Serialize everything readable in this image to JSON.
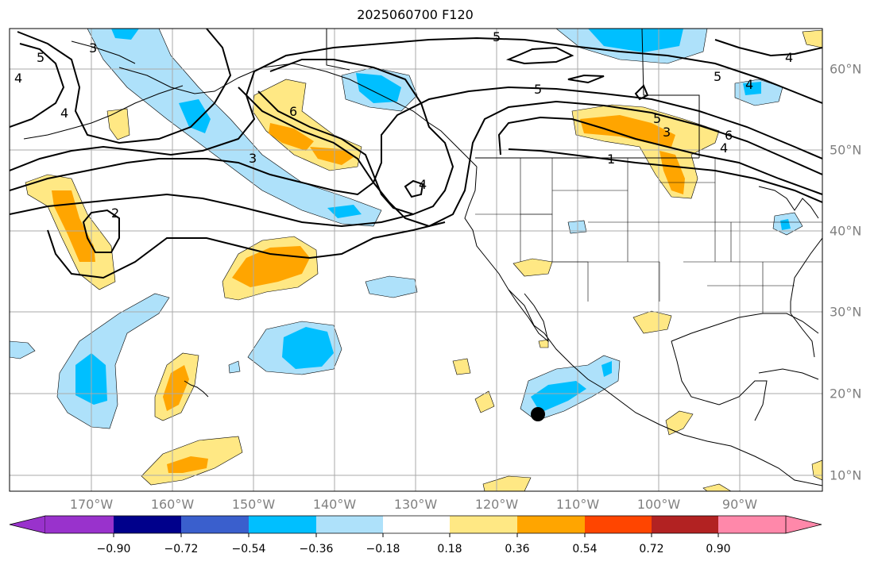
{
  "title": "2025060700 F120",
  "lon_labels": [
    "170°W",
    "160°W",
    "150°W",
    "140°W",
    "130°W",
    "120°W",
    "110°W",
    "100°W",
    "90°W"
  ],
  "lat_labels": [
    "60°N",
    "50°N",
    "40°N",
    "30°N",
    "20°N",
    "10°N"
  ],
  "colorbar": {
    "tick_labels": [
      "−0.90",
      "−0.72",
      "−0.54",
      "−0.36",
      "−0.18",
      "0.18",
      "0.36",
      "0.54",
      "0.72",
      "0.90"
    ],
    "colors": [
      "#9932cc",
      "#00008b",
      "#3a5fcd",
      "#00bfff",
      "#aee1fa",
      "#ffffff",
      "#ffe884",
      "#ffa500",
      "#ff4500",
      "#b22222",
      "#ff88aa"
    ]
  },
  "contour_labels": [
    "5",
    "5",
    "4",
    "3",
    "5",
    "5",
    "4",
    "4",
    "6",
    "5",
    "6",
    "4",
    "3",
    "1",
    "4",
    "3",
    "2",
    "4"
  ],
  "marker": "storm-position-dot"
}
